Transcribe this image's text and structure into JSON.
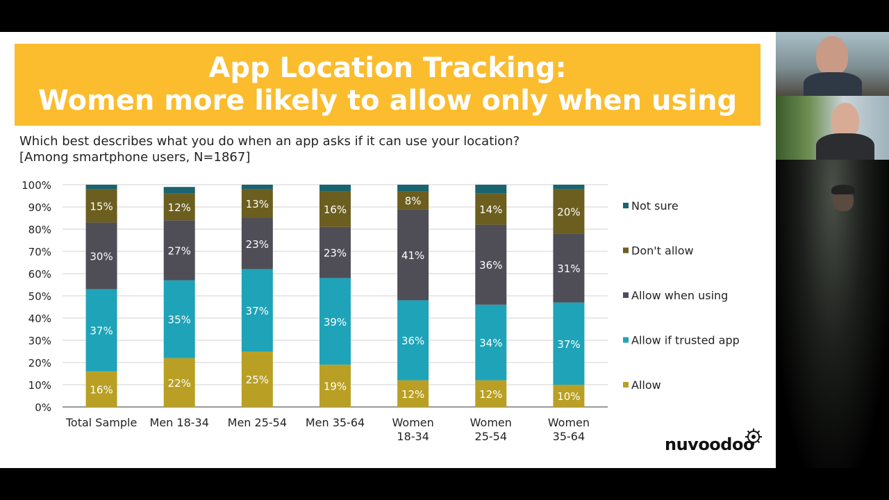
{
  "slide": {
    "title_line1": "App Location Tracking:",
    "title_line2": "Women more likely to allow only when using",
    "question_line1": "Which best describes what you do when an app asks if it can use your location?",
    "question_line2": "[Among smartphone users, N=1867]",
    "logo_text": "nuvoodoo"
  },
  "colors": {
    "banner": "#fbbc2e",
    "allow": "#b9a024",
    "allow_if_trusted_app": "#1fa3b8",
    "allow_when_using": "#4f4e57",
    "dont_allow": "#6b5e1f",
    "not_sure": "#1a6470"
  },
  "chart_data": {
    "type": "bar",
    "stacked": true,
    "categories": [
      [
        "Total Sample"
      ],
      [
        "Men 18-34"
      ],
      [
        "Men 25-54"
      ],
      [
        "Men 35-64"
      ],
      [
        "Women",
        "18-34"
      ],
      [
        "Women",
        "25-54"
      ],
      [
        "Women",
        "35-64"
      ]
    ],
    "series": [
      {
        "name": "Allow",
        "values": [
          16,
          22,
          25,
          19,
          12,
          12,
          10
        ],
        "labels": [
          "16%",
          "22%",
          "25%",
          "19%",
          "12%",
          "12%",
          "10%"
        ]
      },
      {
        "name": "Allow if trusted app",
        "values": [
          37,
          35,
          37,
          39,
          36,
          34,
          37
        ],
        "labels": [
          "37%",
          "35%",
          "37%",
          "39%",
          "36%",
          "34%",
          "37%"
        ]
      },
      {
        "name": "Allow when using",
        "values": [
          30,
          27,
          23,
          23,
          41,
          36,
          31
        ],
        "labels": [
          "30%",
          "27%",
          "23%",
          "23%",
          "41%",
          "36%",
          "31%"
        ]
      },
      {
        "name": "Don't allow",
        "values": [
          15,
          12,
          13,
          16,
          8,
          14,
          20
        ],
        "labels": [
          "15%",
          "12%",
          "13%",
          "16%",
          "8%",
          "14%",
          "20%"
        ]
      },
      {
        "name": "Not sure",
        "values": [
          2,
          3,
          2,
          3,
          3,
          4,
          2
        ],
        "labels": [
          "",
          "",
          "",
          "",
          "",
          "",
          ""
        ]
      }
    ],
    "yticks": [
      "0%",
      "10%",
      "20%",
      "30%",
      "40%",
      "50%",
      "60%",
      "70%",
      "80%",
      "90%",
      "100%"
    ],
    "ylim": [
      0,
      100
    ],
    "grid": true,
    "legend": [
      "Not sure",
      "Don't allow",
      "Allow when using",
      "Allow if trusted app",
      "Allow"
    ],
    "legend_position": "right"
  }
}
